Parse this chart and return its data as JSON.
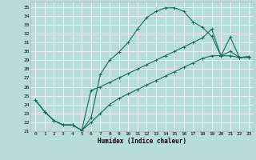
{
  "xlabel": "Humidex (Indice chaleur)",
  "bg_color": "#b8ddd8",
  "line_color": "#1a6b5a",
  "line_width": 0.8,
  "marker": "+",
  "marker_size": 3,
  "marker_ew": 0.7,
  "xlim": [
    -0.5,
    23.5
  ],
  "ylim": [
    21.0,
    35.6
  ],
  "xticks": [
    0,
    1,
    2,
    3,
    4,
    5,
    6,
    7,
    8,
    9,
    10,
    11,
    12,
    13,
    14,
    15,
    16,
    17,
    18,
    19,
    20,
    21,
    22,
    23
  ],
  "yticks": [
    21,
    22,
    23,
    24,
    25,
    26,
    27,
    28,
    29,
    30,
    31,
    32,
    33,
    34,
    35
  ],
  "grid_color": "#ffffff",
  "lines": [
    {
      "x": [
        0,
        1,
        2,
        3,
        4,
        5,
        6,
        7,
        8,
        9,
        10,
        11,
        12,
        13,
        14,
        15,
        16,
        17,
        18,
        19,
        20,
        21,
        22,
        23
      ],
      "y": [
        24.5,
        23.2,
        22.2,
        21.7,
        21.7,
        21.1,
        22.5,
        27.4,
        29.0,
        29.9,
        31.0,
        32.5,
        33.8,
        34.5,
        34.9,
        34.9,
        34.5,
        33.3,
        32.7,
        31.7,
        29.5,
        30.0,
        29.3,
        29.3
      ]
    },
    {
      "x": [
        0,
        1,
        2,
        3,
        4,
        5,
        6,
        7,
        8,
        9,
        10,
        11,
        12,
        13,
        14,
        15,
        16,
        17,
        18,
        19,
        20,
        21,
        22,
        23
      ],
      "y": [
        24.5,
        23.2,
        22.2,
        21.7,
        21.7,
        21.1,
        25.6,
        26.0,
        26.5,
        27.0,
        27.5,
        28.0,
        28.5,
        29.0,
        29.5,
        30.0,
        30.5,
        31.0,
        31.5,
        32.5,
        29.5,
        31.6,
        29.3,
        29.4
      ]
    },
    {
      "x": [
        0,
        1,
        2,
        3,
        4,
        5,
        6,
        7,
        8,
        9,
        10,
        11,
        12,
        13,
        14,
        15,
        16,
        17,
        18,
        19,
        20,
        21,
        22,
        23
      ],
      "y": [
        24.5,
        23.2,
        22.2,
        21.7,
        21.7,
        21.1,
        22.0,
        23.0,
        24.0,
        24.7,
        25.2,
        25.7,
        26.2,
        26.7,
        27.2,
        27.7,
        28.2,
        28.7,
        29.2,
        29.5,
        29.5,
        29.5,
        29.3,
        29.4
      ]
    }
  ]
}
